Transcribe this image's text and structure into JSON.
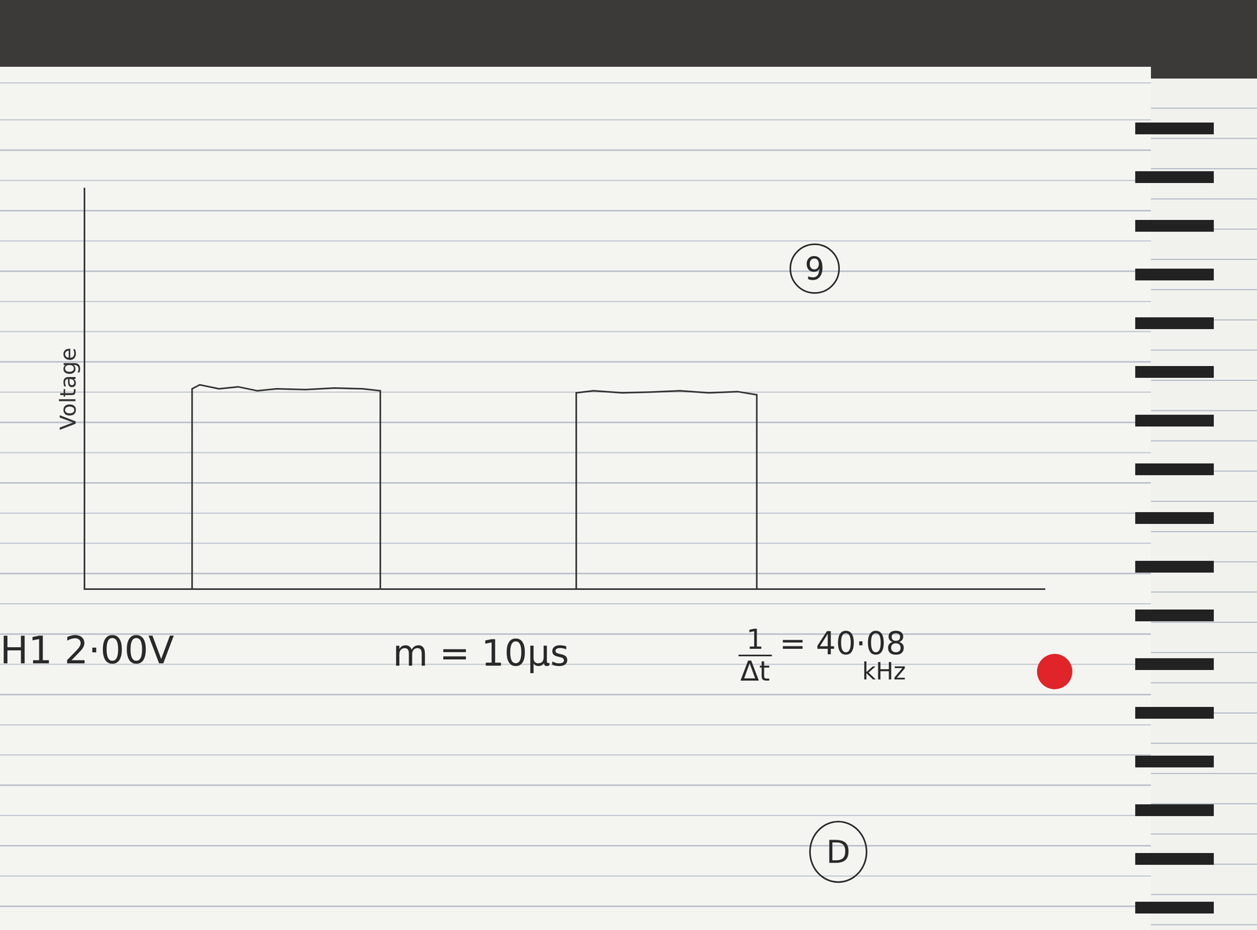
{
  "chart_data": {
    "type": "line",
    "y_label": "Voltage",
    "x": [
      0,
      11.2,
      11.2,
      12,
      14,
      16,
      18,
      20,
      23,
      26,
      29,
      30.8,
      30.8,
      51.2,
      51.2,
      53,
      56,
      59,
      62,
      65,
      68,
      70,
      70,
      100
    ],
    "values": [
      0,
      0,
      5.0,
      5.1,
      5.0,
      5.05,
      4.95,
      5.0,
      4.98,
      5.02,
      5.0,
      4.95,
      0,
      0,
      4.9,
      4.95,
      4.9,
      4.92,
      4.95,
      4.9,
      4.93,
      4.85,
      0,
      0
    ],
    "color": "#333333",
    "xlim": [
      0,
      100
    ],
    "ylim": [
      0,
      10
    ],
    "grid": false,
    "tick_labels": false
  },
  "notes": {
    "page": "9",
    "channel": "H1 2·00V",
    "time_base": "m = 10μs",
    "frequency": {
      "numerator": "1",
      "denominator": "Δt",
      "value": "= 40·08",
      "unit": "kHz"
    },
    "next_section": "D"
  }
}
